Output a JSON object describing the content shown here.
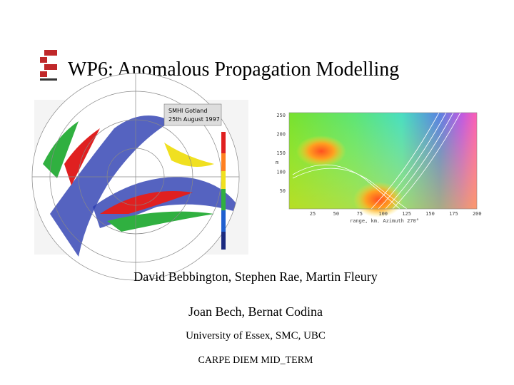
{
  "header": {
    "title": "WP6: Anomalous Propagation Modelling"
  },
  "radar_image": {
    "caption": [
      "SMHI Gotland",
      "25th August 1997"
    ]
  },
  "propagation_plot": {
    "y_label": "m",
    "yticks": [
      250,
      200,
      150,
      100,
      50
    ],
    "xticks": [
      25,
      50,
      75,
      100,
      125,
      150,
      175,
      200
    ],
    "x_label": "range, km. Azimuth 270°"
  },
  "authors": [
    "David Bebbington, Stephen Rae, Martin Fleury",
    "Joan Bech, Bernat Codina"
  ],
  "affiliation": "University of Essex, SMC, UBC",
  "footer": "CARPE DIEM MID_TERM"
}
